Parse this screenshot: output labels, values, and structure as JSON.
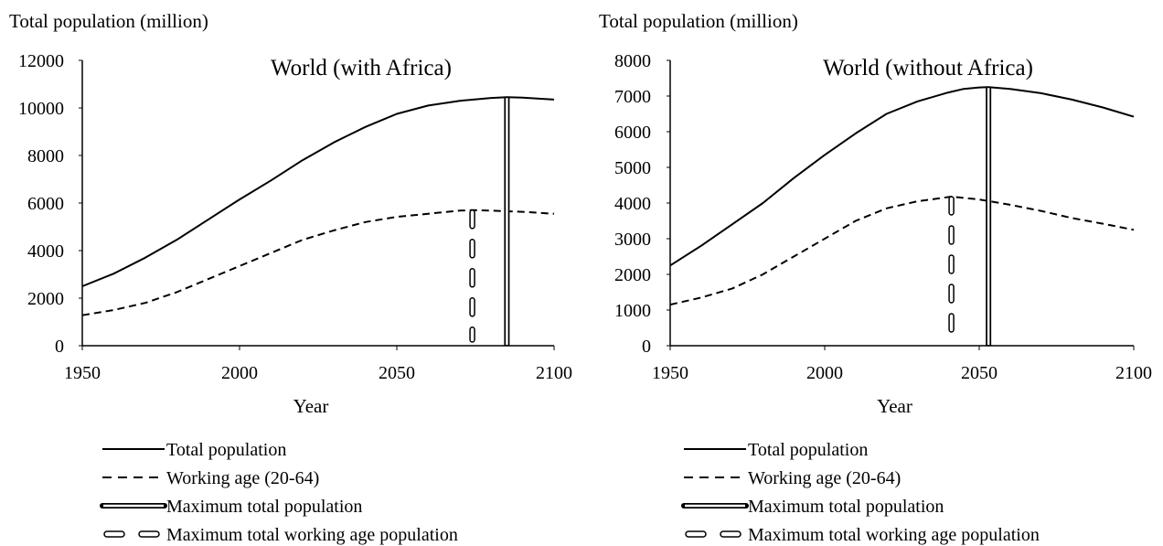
{
  "colors": {
    "ink": "#000000",
    "background": "#ffffff"
  },
  "chart_data": [
    {
      "type": "line",
      "title": "World (with Africa)",
      "ylabel": "Total population (million)",
      "xlabel": "Year",
      "xlim": [
        1950,
        2100
      ],
      "ylim": [
        0,
        12000
      ],
      "xticks": [
        1950,
        2000,
        2050,
        2100
      ],
      "yticks": [
        0,
        2000,
        4000,
        6000,
        8000,
        10000,
        12000
      ],
      "grid": false,
      "legend_position": "bottom",
      "series": [
        {
          "name": "Total population",
          "style": "solid",
          "x": [
            1950,
            1960,
            1970,
            1980,
            1990,
            2000,
            2010,
            2020,
            2030,
            2040,
            2050,
            2060,
            2070,
            2080,
            2085,
            2090,
            2100
          ],
          "y": [
            2500,
            3030,
            3700,
            4450,
            5300,
            6150,
            6950,
            7800,
            8550,
            9200,
            9750,
            10100,
            10300,
            10420,
            10450,
            10430,
            10350
          ]
        },
        {
          "name": "Working age (20-64)",
          "style": "dashed",
          "x": [
            1950,
            1960,
            1970,
            1980,
            1990,
            2000,
            2010,
            2020,
            2030,
            2040,
            2050,
            2060,
            2070,
            2074,
            2080,
            2090,
            2100
          ],
          "y": [
            1280,
            1500,
            1800,
            2250,
            2800,
            3350,
            3900,
            4450,
            4850,
            5200,
            5420,
            5550,
            5680,
            5700,
            5680,
            5630,
            5550
          ]
        }
      ],
      "markers": [
        {
          "name": "Maximum total population",
          "style": "double",
          "x": 2085,
          "y": 10450
        },
        {
          "name": "Maximum total working age population",
          "style": "hollow-dash",
          "x": 2074,
          "y": 5700
        }
      ]
    },
    {
      "type": "line",
      "title": "World (without Africa)",
      "ylabel": "Total population (million)",
      "xlabel": "Year",
      "xlim": [
        1950,
        2100
      ],
      "ylim": [
        0,
        8000
      ],
      "xticks": [
        1950,
        2000,
        2050,
        2100
      ],
      "yticks": [
        0,
        1000,
        2000,
        3000,
        4000,
        5000,
        6000,
        7000,
        8000
      ],
      "grid": false,
      "legend_position": "bottom",
      "series": [
        {
          "name": "Total population",
          "style": "solid",
          "x": [
            1950,
            1960,
            1970,
            1980,
            1990,
            2000,
            2010,
            2020,
            2030,
            2040,
            2045,
            2050,
            2053,
            2060,
            2070,
            2080,
            2090,
            2100
          ],
          "y": [
            2250,
            2800,
            3400,
            4000,
            4700,
            5350,
            5950,
            6500,
            6850,
            7100,
            7200,
            7240,
            7250,
            7200,
            7080,
            6900,
            6680,
            6420
          ]
        },
        {
          "name": "Working age (20-64)",
          "style": "dashed",
          "x": [
            1950,
            1960,
            1970,
            1980,
            1990,
            2000,
            2010,
            2020,
            2030,
            2041,
            2050,
            2060,
            2070,
            2080,
            2090,
            2100
          ],
          "y": [
            1150,
            1350,
            1600,
            2000,
            2500,
            3000,
            3500,
            3850,
            4050,
            4180,
            4100,
            3950,
            3780,
            3580,
            3420,
            3250
          ]
        }
      ],
      "markers": [
        {
          "name": "Maximum total population",
          "style": "double",
          "x": 2053,
          "y": 7250
        },
        {
          "name": "Maximum total working age population",
          "style": "hollow-dash",
          "x": 2041,
          "y": 4180
        }
      ]
    }
  ]
}
